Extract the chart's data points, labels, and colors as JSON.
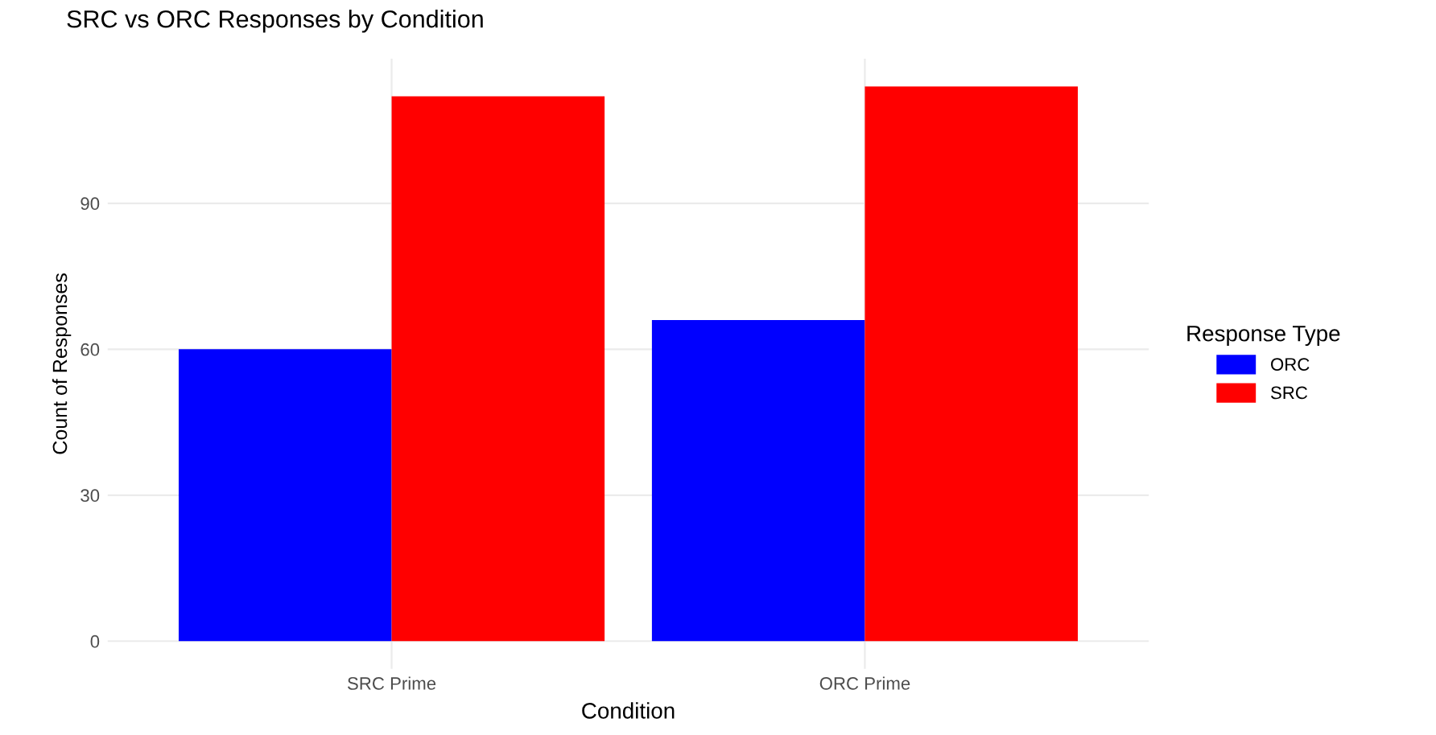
{
  "chart_data": {
    "type": "bar",
    "title": "SRC vs ORC Responses by Condition",
    "xlabel": "Condition",
    "ylabel": "Count of Responses",
    "legend_title": "Response Type",
    "categories": [
      "SRC Prime",
      "ORC Prime"
    ],
    "series": [
      {
        "name": "ORC",
        "color": "#0000ff",
        "values": [
          60,
          66
        ]
      },
      {
        "name": "SRC",
        "color": "#ff0000",
        "values": [
          112,
          114
        ]
      }
    ],
    "ylim": [
      -5.7,
      119.7
    ],
    "yticks": [
      0,
      30,
      60,
      90
    ],
    "grid": true,
    "legend": "right"
  }
}
